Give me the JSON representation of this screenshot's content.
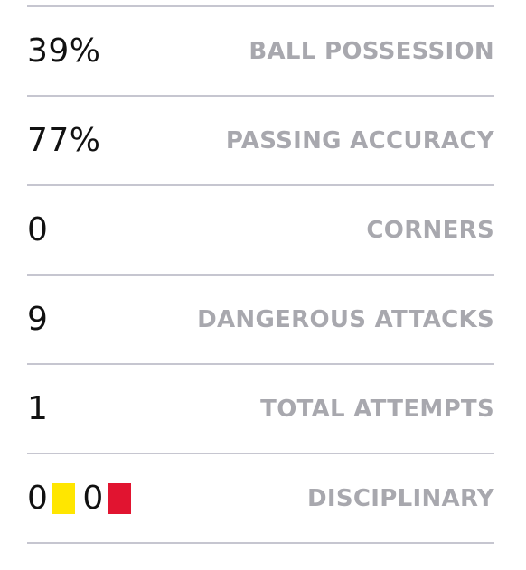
{
  "stats": [
    {
      "value": "39%",
      "label": "BALL POSSESSION"
    },
    {
      "value": "77%",
      "label": "PASSING ACCURACY"
    },
    {
      "value": "0",
      "label": "CORNERS"
    },
    {
      "value": "9",
      "label": "DANGEROUS ATTACKS"
    },
    {
      "value": "1",
      "label": "TOTAL ATTEMPTS"
    }
  ],
  "disciplinary": {
    "label": "DISCIPLINARY",
    "yellow_count": "0",
    "red_count": "0",
    "yellow_color": "#ffe600",
    "red_color": "#e11430"
  },
  "colors": {
    "value_text": "#111111",
    "label_text": "#a8a8ae",
    "divider": "#c6c6d0"
  }
}
